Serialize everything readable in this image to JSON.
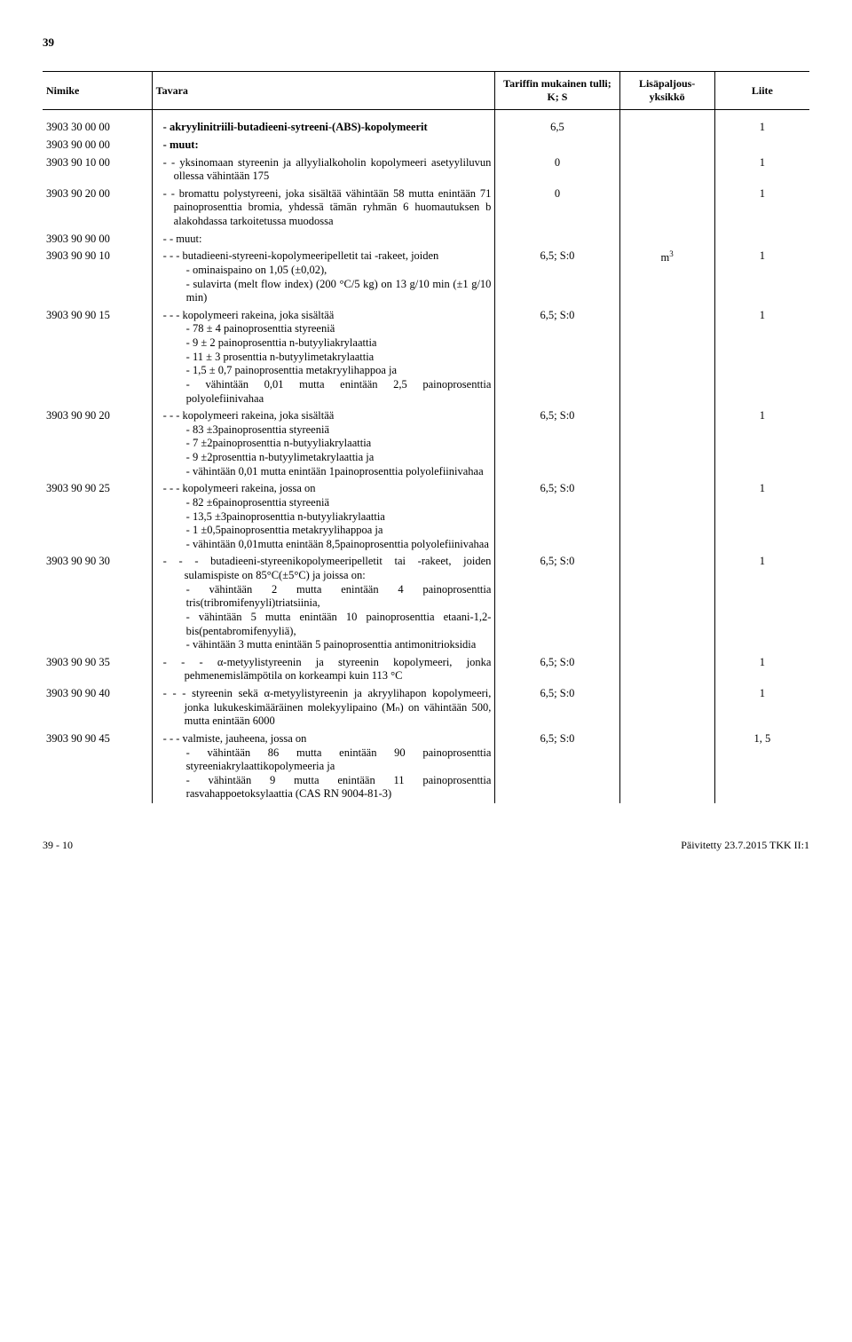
{
  "page_number_top": "39",
  "headers": {
    "nimike": "Nimike",
    "tavara": "Tavara",
    "tulli_line1": "Tariffin mukainen tulli;",
    "tulli_line2": "K; S",
    "yksikko_line1": "Lisäpaljous-",
    "yksikko_line2": "yksikkö",
    "liite": "Liite"
  },
  "rows": [
    {
      "code": "3903 30 00 00",
      "desc": "- akryylinitriili-butadieeni-sytreeni-(ABS)-kopolymeerit",
      "tulli": "6,5",
      "yks": "",
      "liite": "1",
      "bold": true
    },
    {
      "code": "3903 90 00 00",
      "desc": "- muut:",
      "tulli": "",
      "yks": "",
      "liite": "",
      "bold": true
    },
    {
      "code": "3903 90 10 00",
      "desc": "- - yksinomaan styreenin ja allyylialkoholin kopolymeeri asetyyliluvun ollessa vähintään 175",
      "tulli": "0",
      "yks": "",
      "liite": "1"
    },
    {
      "code": "3903 90 20 00",
      "desc": "- - bromattu polystyreeni, joka sisältää vähintään 58 mutta enintään 71 painoprosenttia bromia, yhdessä tämän ryhmän 6 huomautuksen b alakohdassa tarkoitetussa muodossa",
      "tulli": "0",
      "yks": "",
      "liite": "1"
    },
    {
      "code": "3903 90 90 00",
      "desc": "- - muut:",
      "tulli": "",
      "yks": "",
      "liite": ""
    },
    {
      "code": "3903 90 90 10",
      "desc": "- - - butadieeni-styreeni-kopolymeeripelletit tai -rakeet, joiden",
      "tulli": "6,5; S:0",
      "yks": "m³",
      "liite": "1",
      "subs": [
        "- ominaispaino on 1,05 (±0,02),",
        "- sulavirta (melt flow index) (200 °C/5 kg) on 13 g/10 min (±1 g/10 min)"
      ]
    },
    {
      "code": "3903 90 90 15",
      "desc": "- - - kopolymeeri rakeina, joka sisältää",
      "tulli": "6,5; S:0",
      "yks": "",
      "liite": "1",
      "subs": [
        "- 78 ± 4 painoprosenttia styreeniä",
        "- 9 ± 2 painoprosenttia n-butyyliakrylaattia",
        "- 11 ± 3 prosenttia n-butyylimetakrylaattia",
        "- 1,5 ± 0,7 painoprosenttia metakryylihappoa ja",
        "- vähintään 0,01 mutta enintään 2,5 painoprosenttia polyolefiinivahaa"
      ]
    },
    {
      "code": "3903 90 90 20",
      "desc": "- - - kopolymeeri rakeina, joka sisältää",
      "tulli": "6,5; S:0",
      "yks": "",
      "liite": "1",
      "subs": [
        "- 83 ±3painoprosenttia styreeniä",
        "- 7 ±2painoprosenttia n-butyyliakrylaattia",
        "- 9 ±2prosenttia n-butyylimetakrylaattia ja",
        "- vähintään 0,01 mutta enintään 1painoprosenttia polyolefiinivahaa"
      ]
    },
    {
      "code": "3903 90 90 25",
      "desc": "- - - kopolymeeri rakeina, jossa on",
      "tulli": "6,5; S:0",
      "yks": "",
      "liite": "1",
      "subs": [
        "- 82 ±6painoprosenttia styreeniä",
        "- 13,5 ±3painoprosenttia n-butyyliakrylaattia",
        "- 1 ±0,5painoprosenttia metakryylihappoa ja",
        "- vähintään 0,01mutta enintään 8,5painoprosenttia polyolefiinivahaa"
      ]
    },
    {
      "code": "3903 90 90 30",
      "desc": "- - - butadieeni-styreenikopolymeeripelletit tai -rakeet, joiden sulamispiste on 85°C(±5°C) ja joissa on:",
      "tulli": "6,5; S:0",
      "yks": "",
      "liite": "1",
      "subs": [
        "- vähintään 2 mutta enintään 4 painoprosenttia tris(tribromifenyyli)triatsiinia,",
        "- vähintään 5 mutta enintään 10 painoprosenttia etaani-1,2-bis(pentabromifenyyliä),",
        "- vähintään 3 mutta enintään 5 painoprosenttia antimonitrioksidia"
      ]
    },
    {
      "code": "3903 90 90 35",
      "desc": "- - - α-metyylistyreenin ja styreenin kopolymeeri, jonka pehmenemislämpötila on korkeampi kuin 113 °C",
      "tulli": "6,5; S:0",
      "yks": "",
      "liite": "1"
    },
    {
      "code": "3903 90 90 40",
      "desc": "- - - styreenin sekä α-metyylistyreenin ja akryylihapon kopolymeeri, jonka lukukeskimääräinen molekyylipaino (Mₙ) on vähintään 500, mutta enintään 6000",
      "tulli": "6,5; S:0",
      "yks": "",
      "liite": "1"
    },
    {
      "code": "3903 90 90 45",
      "desc": "- - - valmiste, jauheena, jossa on",
      "tulli": "6,5; S:0",
      "yks": "",
      "liite": "1, 5",
      "subs": [
        "- vähintään 86 mutta enintään 90 painoprosenttia styreeniakrylaattikopolymeeria ja",
        "- vähintään 9 mutta enintään 11 painoprosenttia rasvahappoetoksylaattia (CAS RN 9004-81-3)"
      ]
    }
  ],
  "footer_left": "39 - 10",
  "footer_right": "Päivitetty 23.7.2015 TKK II:1"
}
